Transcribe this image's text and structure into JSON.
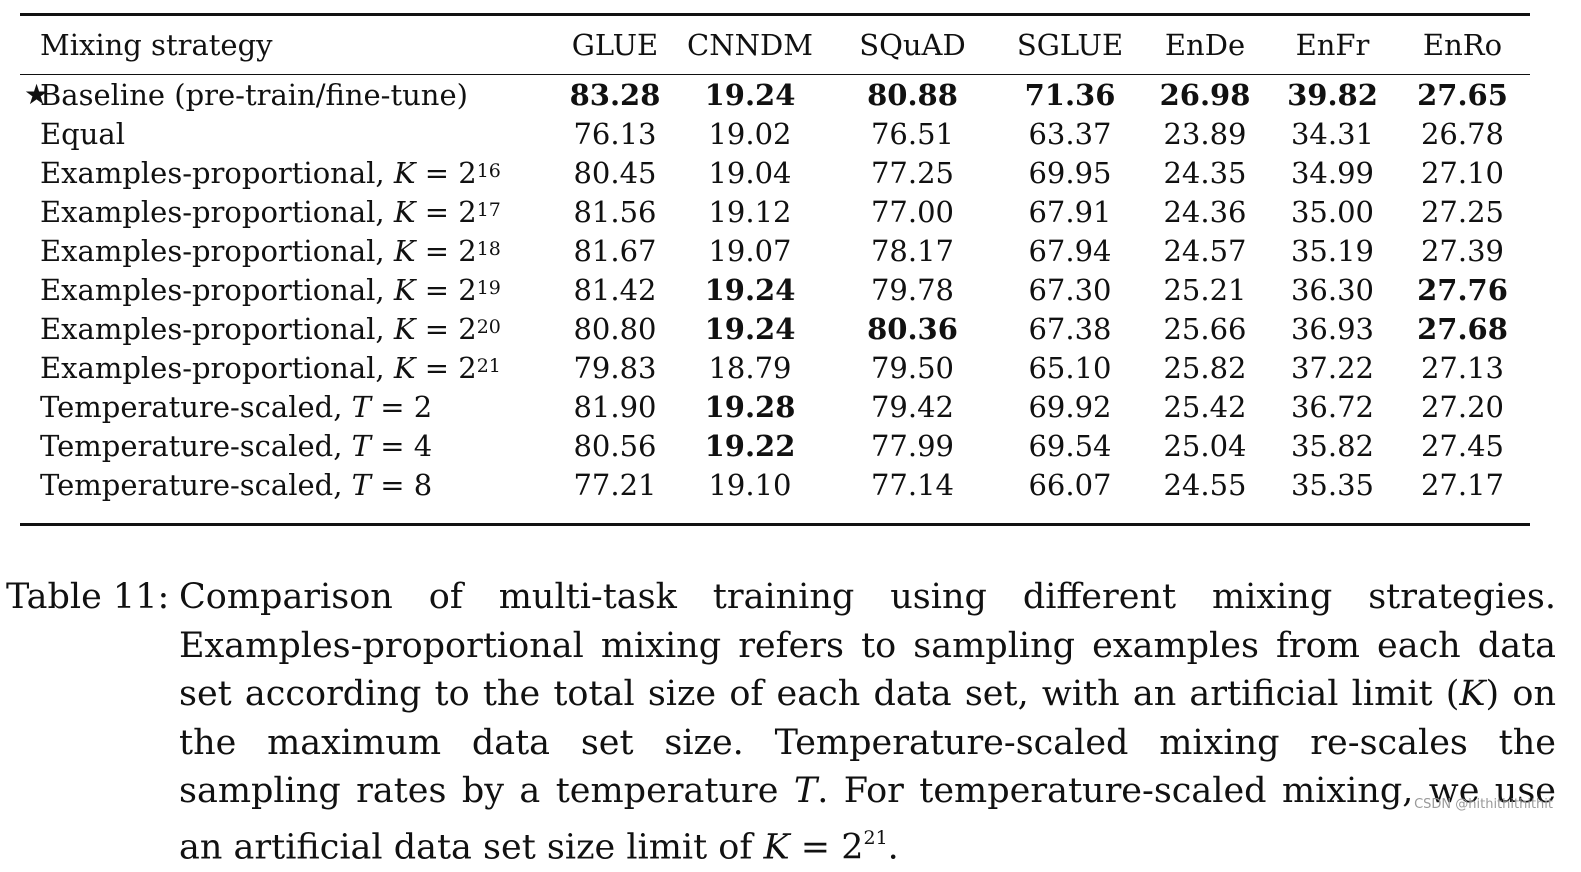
{
  "table": {
    "headers": [
      "Mixing strategy",
      "GLUE",
      "CNNDM",
      "SQuAD",
      "SGLUE",
      "EnDe",
      "EnFr",
      "EnRo"
    ],
    "rows": [
      {
        "star": true,
        "label": "Baseline (pre-train/fine-tune)",
        "var": "",
        "eq": "",
        "base": "",
        "exp": "",
        "values": [
          "83.28",
          "19.24",
          "80.88",
          "71.36",
          "26.98",
          "39.82",
          "27.65"
        ],
        "bold": [
          true,
          true,
          true,
          true,
          true,
          true,
          true
        ]
      },
      {
        "star": false,
        "label": "Equal",
        "var": "",
        "eq": "",
        "base": "",
        "exp": "",
        "values": [
          "76.13",
          "19.02",
          "76.51",
          "63.37",
          "23.89",
          "34.31",
          "26.78"
        ],
        "bold": [
          false,
          false,
          false,
          false,
          false,
          false,
          false
        ]
      },
      {
        "star": false,
        "label": "Examples-proportional, ",
        "var": "K",
        "eq": " = ",
        "base": "2",
        "exp": "16",
        "values": [
          "80.45",
          "19.04",
          "77.25",
          "69.95",
          "24.35",
          "34.99",
          "27.10"
        ],
        "bold": [
          false,
          false,
          false,
          false,
          false,
          false,
          false
        ]
      },
      {
        "star": false,
        "label": "Examples-proportional, ",
        "var": "K",
        "eq": " = ",
        "base": "2",
        "exp": "17",
        "values": [
          "81.56",
          "19.12",
          "77.00",
          "67.91",
          "24.36",
          "35.00",
          "27.25"
        ],
        "bold": [
          false,
          false,
          false,
          false,
          false,
          false,
          false
        ]
      },
      {
        "star": false,
        "label": "Examples-proportional, ",
        "var": "K",
        "eq": " = ",
        "base": "2",
        "exp": "18",
        "values": [
          "81.67",
          "19.07",
          "78.17",
          "67.94",
          "24.57",
          "35.19",
          "27.39"
        ],
        "bold": [
          false,
          false,
          false,
          false,
          false,
          false,
          false
        ]
      },
      {
        "star": false,
        "label": "Examples-proportional, ",
        "var": "K",
        "eq": " = ",
        "base": "2",
        "exp": "19",
        "values": [
          "81.42",
          "19.24",
          "79.78",
          "67.30",
          "25.21",
          "36.30",
          "27.76"
        ],
        "bold": [
          false,
          true,
          false,
          false,
          false,
          false,
          true
        ]
      },
      {
        "star": false,
        "label": "Examples-proportional, ",
        "var": "K",
        "eq": " = ",
        "base": "2",
        "exp": "20",
        "values": [
          "80.80",
          "19.24",
          "80.36",
          "67.38",
          "25.66",
          "36.93",
          "27.68"
        ],
        "bold": [
          false,
          true,
          true,
          false,
          false,
          false,
          true
        ]
      },
      {
        "star": false,
        "label": "Examples-proportional, ",
        "var": "K",
        "eq": " = ",
        "base": "2",
        "exp": "21",
        "values": [
          "79.83",
          "18.79",
          "79.50",
          "65.10",
          "25.82",
          "37.22",
          "27.13"
        ],
        "bold": [
          false,
          false,
          false,
          false,
          false,
          false,
          false
        ]
      },
      {
        "star": false,
        "label": "Temperature-scaled, ",
        "var": "T",
        "eq": " = ",
        "base": "2",
        "exp": "",
        "values": [
          "81.90",
          "19.28",
          "79.42",
          "69.92",
          "25.42",
          "36.72",
          "27.20"
        ],
        "bold": [
          false,
          true,
          false,
          false,
          false,
          false,
          false
        ]
      },
      {
        "star": false,
        "label": "Temperature-scaled, ",
        "var": "T",
        "eq": " = ",
        "base": "4",
        "exp": "",
        "values": [
          "80.56",
          "19.22",
          "77.99",
          "69.54",
          "25.04",
          "35.82",
          "27.45"
        ],
        "bold": [
          false,
          true,
          false,
          false,
          false,
          false,
          false
        ]
      },
      {
        "star": false,
        "label": "Temperature-scaled, ",
        "var": "T",
        "eq": " = ",
        "base": "8",
        "exp": "",
        "values": [
          "77.21",
          "19.10",
          "77.14",
          "66.07",
          "24.55",
          "35.35",
          "27.17"
        ],
        "bold": [
          false,
          false,
          false,
          false,
          false,
          false,
          false
        ]
      }
    ]
  },
  "caption": {
    "label": "Table 11:",
    "text": "Comparison of multi-task training using different mixing strategies. Examples-proportional mixing refers to sampling examples from each data set according to the total size of each data set, with an artificial limit (K) on the maximum data set size. Temperature-scaled mixing re-scales the sampling rates by a temperature T. For temperature-scaled mixing, we use an artificial data set size limit of K = 2^21."
  },
  "watermark": "CSDN @hithithithithit"
}
